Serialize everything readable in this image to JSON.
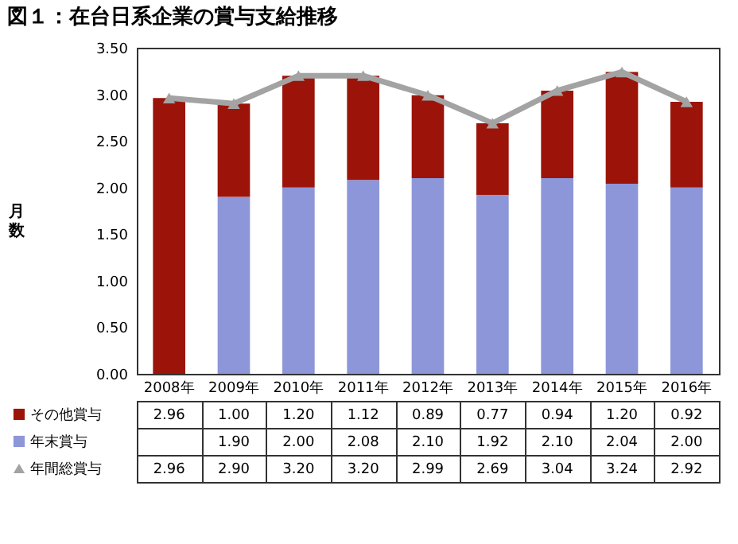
{
  "chart_data": {
    "type": "bar",
    "title": "図１：在台日系企業の賞与支給推移",
    "ylabel": "月数",
    "categories": [
      "2008年",
      "2009年",
      "2010年",
      "2011年",
      "2012年",
      "2013年",
      "2014年",
      "2015年",
      "2016年"
    ],
    "stacked": true,
    "series": [
      {
        "name": "年末賞与",
        "color": "#8c96d9",
        "values": [
          null,
          1.9,
          2.0,
          2.08,
          2.1,
          1.92,
          2.1,
          2.04,
          2.0
        ],
        "value_labels": [
          null,
          "1.90",
          "2.00",
          "2.08",
          "2.10",
          "1.92",
          "2.10",
          "2.04",
          "2.00"
        ]
      },
      {
        "name": "その他賞与",
        "color": "#9c1409",
        "values": [
          2.96,
          1.0,
          1.2,
          1.12,
          0.89,
          0.77,
          0.94,
          1.2,
          0.92
        ],
        "value_labels": [
          "2.96",
          "1.00",
          "1.20",
          "1.12",
          "0.89",
          "0.77",
          "0.94",
          "1.20",
          "0.92"
        ]
      },
      {
        "name": "年間総賞与",
        "type": "line",
        "color": "#a3a3a3",
        "values": [
          2.96,
          2.9,
          3.2,
          3.2,
          2.99,
          2.69,
          3.04,
          3.24,
          2.92
        ],
        "value_labels": [
          "2.96",
          "2.90",
          "3.20",
          "3.20",
          "2.99",
          "2.69",
          "3.04",
          "3.24",
          "2.92"
        ]
      }
    ],
    "ylim": [
      0,
      3.5
    ],
    "yticks": [
      {
        "value": 0,
        "label": "0.00"
      },
      {
        "value": 0.5,
        "label": "0.50"
      },
      {
        "value": 1,
        "label": "1.00"
      },
      {
        "value": 1.5,
        "label": "1.50"
      },
      {
        "value": 2,
        "label": "2.00"
      },
      {
        "value": 2.5,
        "label": "2.50"
      },
      {
        "value": 3,
        "label": "3.00"
      },
      {
        "value": 3.5,
        "label": "3.50"
      }
    ],
    "marker": "triangle",
    "line_style": "solid",
    "legend": "bottom left",
    "grid": false
  }
}
